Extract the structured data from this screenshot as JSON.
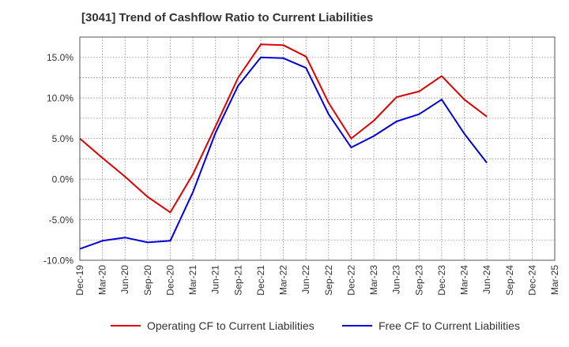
{
  "title": "[3041]  Trend of Cashflow Ratio to Current Liabilities",
  "chart_data": {
    "type": "line",
    "title": "[3041]  Trend of Cashflow Ratio to Current Liabilities",
    "x": [
      "Dec-19",
      "Mar-20",
      "Jun-20",
      "Sep-20",
      "Dec-20",
      "Mar-21",
      "Jun-21",
      "Sep-21",
      "Dec-21",
      "Mar-22",
      "Jun-22",
      "Sep-22",
      "Dec-22",
      "Mar-23",
      "Jun-23",
      "Sep-23",
      "Dec-23",
      "Mar-24",
      "Jun-24",
      "Sep-24",
      "Dec-24",
      "Mar-25"
    ],
    "y_ticks": [
      "-10.0%",
      "-5.0%",
      "0.0%",
      "5.0%",
      "10.0%",
      "15.0%"
    ],
    "ylim": [
      -10,
      17.5
    ],
    "yunit": "%",
    "series": [
      {
        "name": "Operating CF to Current Liabilities",
        "color": "#e00000",
        "values": [
          5.0,
          2.6,
          0.3,
          -2.2,
          -4.1,
          0.6,
          6.5,
          12.5,
          16.6,
          16.5,
          15.1,
          9.4,
          5.0,
          7.2,
          10.1,
          10.8,
          12.7,
          9.8,
          7.7,
          null,
          null,
          null
        ]
      },
      {
        "name": "Free CF to Current Liabilities",
        "color": "#0000e0",
        "values": [
          -8.6,
          -7.6,
          -7.2,
          -7.8,
          -7.6,
          -1.6,
          5.7,
          11.5,
          15.0,
          14.9,
          13.7,
          8.0,
          3.9,
          5.3,
          7.1,
          8.0,
          9.8,
          5.6,
          2.0,
          null,
          null,
          null
        ]
      }
    ],
    "grid": true,
    "legend_position": "bottom"
  }
}
